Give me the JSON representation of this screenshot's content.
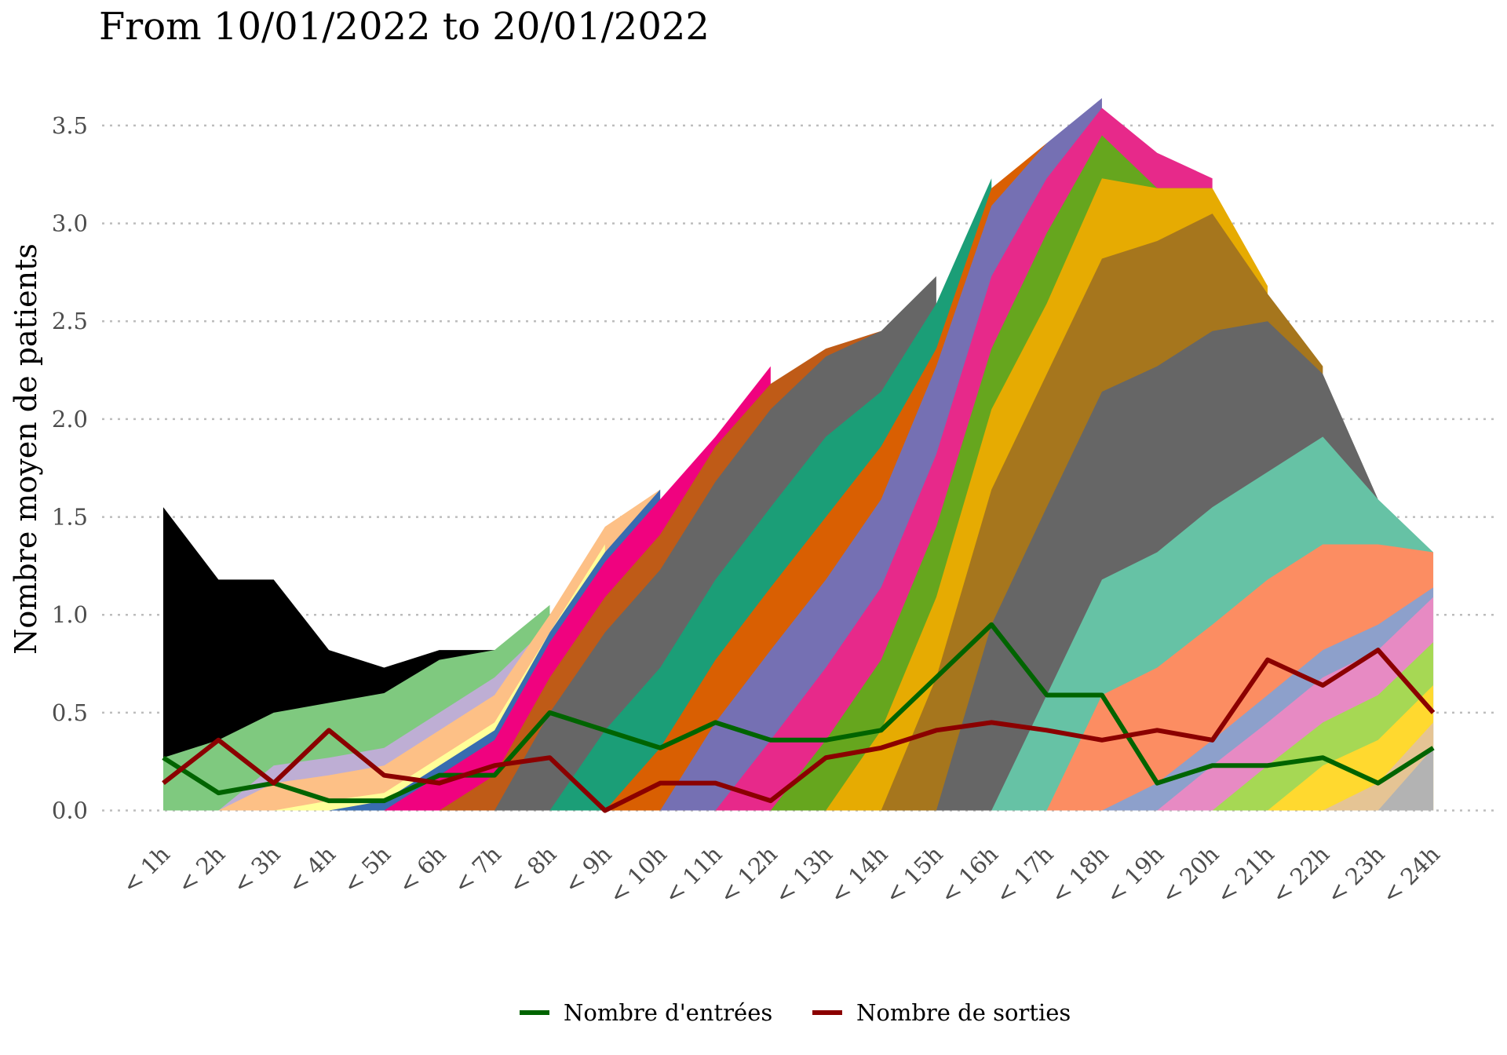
{
  "chart_data": {
    "type": "area",
    "title": "From 10/01/2022 to 20/01/2022",
    "ylabel": "Nombre moyen de patients",
    "xlabel": "",
    "ylim": [
      -0.09,
      3.64
    ],
    "yticks": [
      0.0,
      0.5,
      1.0,
      1.5,
      2.0,
      2.5,
      3.0,
      3.5
    ],
    "ytick_labels": [
      "0.0",
      "0.5",
      "1.0",
      "1.5",
      "2.0",
      "2.5",
      "3.0",
      "3.5"
    ],
    "grid": "horizontal dotted",
    "legend_position": "bottom",
    "categories": [
      "< 1h",
      "< 2h",
      "< 3h",
      "< 4h",
      "< 5h",
      "< 6h",
      "< 7h",
      "< 8h",
      "< 9h",
      "< 10h",
      "< 11h",
      "< 12h",
      "< 13h",
      "< 14h",
      "< 15h",
      "< 16h",
      "< 17h",
      "< 18h",
      "< 19h",
      "< 20h",
      "< 21h",
      "< 22h",
      "< 23h",
      "< 24h"
    ],
    "stacked_envelopes": [
      {
        "color": "#000000",
        "values": [
          1.55,
          1.18,
          1.18,
          0.82,
          0.73,
          0.82,
          0.82,
          null,
          null,
          null,
          null,
          null,
          null,
          null,
          null,
          null,
          null,
          null,
          null,
          null,
          null,
          null,
          null,
          null
        ]
      },
      {
        "color": "#7fc97f",
        "values": [
          0.27,
          0.36,
          0.5,
          0.55,
          0.6,
          0.77,
          0.82,
          1.05,
          null,
          null,
          null,
          null,
          null,
          null,
          null,
          null,
          null,
          null,
          null,
          null,
          null,
          null,
          null,
          null
        ]
      },
      {
        "color": "#beaed4",
        "values": [
          0.0,
          0.0,
          0.23,
          0.27,
          0.32,
          0.5,
          0.68,
          0.95,
          null,
          null,
          null,
          null,
          null,
          null,
          null,
          null,
          null,
          null,
          null,
          null,
          null,
          null,
          null,
          null
        ]
      },
      {
        "color": "#fdc086",
        "values": [
          null,
          0.0,
          0.14,
          0.18,
          0.23,
          0.41,
          0.59,
          1.0,
          1.45,
          1.64,
          null,
          null,
          null,
          null,
          null,
          null,
          null,
          null,
          null,
          null,
          null,
          null,
          null,
          null
        ]
      },
      {
        "color": "#ffff99",
        "values": [
          null,
          null,
          0.0,
          0.05,
          0.09,
          0.27,
          0.45,
          0.91,
          1.36,
          null,
          null,
          null,
          null,
          null,
          null,
          null,
          null,
          null,
          null,
          null,
          null,
          null,
          null,
          null
        ]
      },
      {
        "color": "#386cb0",
        "values": [
          null,
          null,
          null,
          0.0,
          0.05,
          0.23,
          0.41,
          0.91,
          1.32,
          1.64,
          null,
          null,
          null,
          null,
          null,
          null,
          null,
          null,
          null,
          null,
          null,
          null,
          null,
          null
        ]
      },
      {
        "color": "#f0027f",
        "values": [
          null,
          null,
          null,
          null,
          0.0,
          0.18,
          0.36,
          0.86,
          1.27,
          1.59,
          1.91,
          2.27,
          null,
          null,
          null,
          null,
          null,
          null,
          null,
          null,
          null,
          null,
          null,
          null
        ]
      },
      {
        "color": "#bf5b17",
        "values": [
          null,
          null,
          null,
          null,
          null,
          0.0,
          0.18,
          0.68,
          1.09,
          1.41,
          1.86,
          2.18,
          2.36,
          2.45,
          null,
          null,
          null,
          null,
          null,
          null,
          null,
          null,
          null,
          null
        ]
      },
      {
        "color": "#666666",
        "values": [
          null,
          null,
          null,
          null,
          null,
          null,
          0.0,
          0.5,
          0.91,
          1.23,
          1.68,
          2.05,
          2.32,
          2.45,
          2.73,
          null,
          null,
          null,
          null,
          null,
          null,
          null,
          null,
          null
        ]
      },
      {
        "color": "#1b9e77",
        "values": [
          null,
          null,
          null,
          null,
          null,
          null,
          null,
          0.0,
          0.41,
          0.73,
          1.18,
          1.55,
          1.91,
          2.14,
          2.59,
          3.23,
          null,
          null,
          null,
          null,
          null,
          null,
          null,
          null
        ]
      },
      {
        "color": "#d95f02",
        "values": [
          null,
          null,
          null,
          null,
          null,
          null,
          null,
          null,
          0.0,
          0.32,
          0.77,
          1.14,
          1.5,
          1.86,
          2.36,
          3.18,
          3.41,
          null,
          null,
          null,
          null,
          null,
          null,
          null
        ]
      },
      {
        "color": "#7570b3",
        "values": [
          null,
          null,
          null,
          null,
          null,
          null,
          null,
          null,
          null,
          0.0,
          0.45,
          0.82,
          1.18,
          1.59,
          2.27,
          3.09,
          3.41,
          3.64,
          null,
          null,
          null,
          null,
          null,
          null
        ]
      },
      {
        "color": "#e7298a",
        "values": [
          null,
          null,
          null,
          null,
          null,
          null,
          null,
          null,
          null,
          null,
          0.0,
          0.36,
          0.73,
          1.14,
          1.82,
          2.73,
          3.23,
          3.59,
          3.36,
          3.23,
          null,
          null,
          null,
          null
        ]
      },
      {
        "color": "#66a61e",
        "values": [
          null,
          null,
          null,
          null,
          null,
          null,
          null,
          null,
          null,
          null,
          null,
          0.0,
          0.36,
          0.77,
          1.45,
          2.36,
          2.95,
          3.45,
          3.18,
          3.18,
          null,
          null,
          null,
          null
        ]
      },
      {
        "color": "#e6ab02",
        "values": [
          null,
          null,
          null,
          null,
          null,
          null,
          null,
          null,
          null,
          null,
          null,
          null,
          0.0,
          0.41,
          1.09,
          2.05,
          2.59,
          3.23,
          3.18,
          3.18,
          2.68,
          null,
          null,
          null
        ]
      },
      {
        "color": "#a6761d",
        "values": [
          null,
          null,
          null,
          null,
          null,
          null,
          null,
          null,
          null,
          null,
          null,
          null,
          null,
          0.0,
          0.68,
          1.64,
          2.23,
          2.82,
          2.91,
          3.05,
          2.64,
          2.27,
          null,
          null
        ]
      },
      {
        "color": "#666666",
        "values": [
          null,
          null,
          null,
          null,
          null,
          null,
          null,
          null,
          null,
          null,
          null,
          null,
          null,
          null,
          0.0,
          0.95,
          1.55,
          2.14,
          2.27,
          2.45,
          2.5,
          2.23,
          1.59,
          null
        ]
      },
      {
        "color": "#66c2a5",
        "values": [
          null,
          null,
          null,
          null,
          null,
          null,
          null,
          null,
          null,
          null,
          null,
          null,
          null,
          null,
          null,
          0.0,
          0.59,
          1.18,
          1.32,
          1.55,
          1.73,
          1.91,
          1.59,
          1.32
        ]
      },
      {
        "color": "#fc8d62",
        "values": [
          null,
          null,
          null,
          null,
          null,
          null,
          null,
          null,
          null,
          null,
          null,
          null,
          null,
          null,
          null,
          null,
          0.0,
          0.59,
          0.73,
          0.95,
          1.18,
          1.36,
          1.36,
          1.32
        ]
      },
      {
        "color": "#8da0cb",
        "values": [
          null,
          null,
          null,
          null,
          null,
          null,
          null,
          null,
          null,
          null,
          null,
          null,
          null,
          null,
          null,
          null,
          null,
          0.0,
          0.14,
          0.36,
          0.59,
          0.82,
          0.95,
          1.14
        ]
      },
      {
        "color": "#e78ac3",
        "values": [
          null,
          null,
          null,
          null,
          null,
          null,
          null,
          null,
          null,
          null,
          null,
          null,
          null,
          null,
          null,
          null,
          null,
          null,
          0.0,
          0.23,
          0.45,
          0.68,
          0.82,
          1.09
        ]
      },
      {
        "color": "#a6d854",
        "values": [
          null,
          null,
          null,
          null,
          null,
          null,
          null,
          null,
          null,
          null,
          null,
          null,
          null,
          null,
          null,
          null,
          null,
          null,
          null,
          0.0,
          0.23,
          0.45,
          0.59,
          0.86
        ]
      },
      {
        "color": "#ffd92f",
        "values": [
          null,
          null,
          null,
          null,
          null,
          null,
          null,
          null,
          null,
          null,
          null,
          null,
          null,
          null,
          null,
          null,
          null,
          null,
          null,
          null,
          0.0,
          0.23,
          0.36,
          0.64
        ]
      },
      {
        "color": "#e5c494",
        "values": [
          null,
          null,
          null,
          null,
          null,
          null,
          null,
          null,
          null,
          null,
          null,
          null,
          null,
          null,
          null,
          null,
          null,
          null,
          null,
          null,
          null,
          0.0,
          0.14,
          0.45
        ]
      },
      {
        "color": "#b3b3b3",
        "values": [
          null,
          null,
          null,
          null,
          null,
          null,
          null,
          null,
          null,
          null,
          null,
          null,
          null,
          null,
          null,
          null,
          null,
          null,
          null,
          null,
          null,
          null,
          0.0,
          0.32
        ]
      }
    ],
    "series": [
      {
        "name": "Nombre d'entrées",
        "color": "#006400",
        "values": [
          0.27,
          0.09,
          0.14,
          0.05,
          0.05,
          0.18,
          0.18,
          0.5,
          0.41,
          0.32,
          0.45,
          0.36,
          0.36,
          0.41,
          0.68,
          0.95,
          0.59,
          0.59,
          0.14,
          0.23,
          0.23,
          0.27,
          0.14,
          0.32
        ]
      },
      {
        "name": "Nombre de sorties",
        "color": "#8b0000",
        "values": [
          0.14,
          0.36,
          0.14,
          0.41,
          0.18,
          0.14,
          0.23,
          0.27,
          0.0,
          0.14,
          0.14,
          0.05,
          0.27,
          0.32,
          0.41,
          0.45,
          0.41,
          0.36,
          0.41,
          0.36,
          0.77,
          0.64,
          0.82,
          0.5
        ]
      }
    ]
  }
}
